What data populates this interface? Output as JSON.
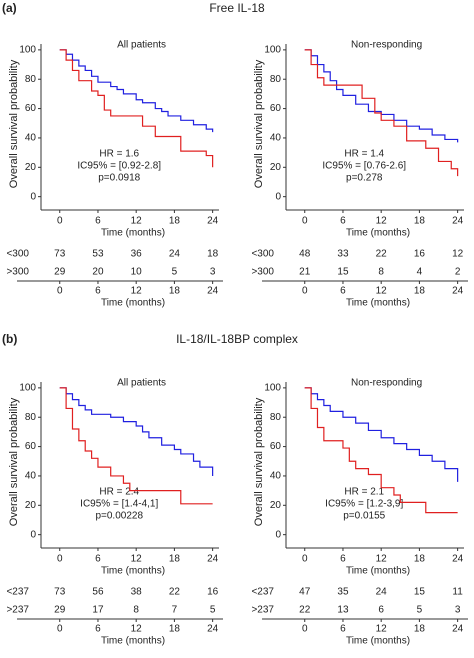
{
  "panels": [
    {
      "label": "(a)",
      "title": "Free IL-18"
    },
    {
      "label": "(b)",
      "title": "IL-18/IL-18BP complex"
    }
  ],
  "chart_data": [
    {
      "type": "line",
      "step": true,
      "subtitle": "All patients",
      "ylabel": "Overall survival probability",
      "xlabel": "Time (months)",
      "xlim": [
        -2,
        25
      ],
      "ylim": [
        -5,
        104
      ],
      "xticks": [
        0,
        6,
        12,
        18,
        24
      ],
      "yticks": [
        0,
        20,
        40,
        60,
        80,
        100
      ],
      "annotations": [
        "HR = 1.6",
        "IC95% = [0.92-2.8]",
        "p=0.0918"
      ],
      "series": [
        {
          "name": "<300",
          "color": "#2020e0",
          "x": [
            0,
            1,
            2,
            3,
            4,
            5,
            6,
            8,
            9,
            10,
            12,
            13,
            15,
            16,
            17,
            19,
            21,
            23,
            24
          ],
          "values": [
            100,
            97,
            93,
            89,
            86,
            82,
            78,
            75,
            73,
            70,
            66,
            64,
            60,
            58,
            55,
            52,
            49,
            46,
            44
          ],
          "at_risk": [
            73,
            53,
            36,
            24,
            18
          ]
        },
        {
          "name": ">300",
          "color": "#e02020",
          "x": [
            0,
            1,
            2,
            3,
            5,
            6,
            7,
            8,
            12,
            13,
            15,
            19,
            23,
            24
          ],
          "values": [
            100,
            93,
            86,
            79,
            72,
            69,
            59,
            55,
            55,
            48,
            41,
            31,
            28,
            20
          ],
          "at_risk": [
            29,
            20,
            10,
            5,
            3
          ]
        }
      ],
      "risk_table": {
        "xticks": [
          0,
          6,
          12,
          18,
          24
        ],
        "xlabel": "Time (months)"
      }
    },
    {
      "type": "line",
      "step": true,
      "subtitle": "Non-responding",
      "ylabel": "Overall survival probability",
      "xlabel": "Time (months)",
      "xlim": [
        -2,
        25
      ],
      "ylim": [
        -5,
        104
      ],
      "xticks": [
        0,
        6,
        12,
        18,
        24
      ],
      "yticks": [
        0,
        20,
        40,
        60,
        80,
        100
      ],
      "annotations": [
        "HR = 1.4",
        "IC95% = [0.76-2.6]",
        "p=0.278"
      ],
      "series": [
        {
          "name": "<300",
          "color": "#2020e0",
          "x": [
            0,
            1,
            2,
            3,
            4,
            5,
            6,
            8,
            10,
            12,
            14,
            16,
            18,
            20,
            22,
            24
          ],
          "values": [
            100,
            96,
            90,
            85,
            79,
            73,
            69,
            63,
            58,
            56,
            52,
            48,
            46,
            42,
            39,
            37
          ],
          "at_risk": [
            48,
            33,
            22,
            16,
            12
          ]
        },
        {
          "name": ">300",
          "color": "#e02020",
          "x": [
            0,
            1,
            2,
            3,
            8,
            9,
            11,
            12,
            14,
            16,
            19,
            21,
            23,
            24
          ],
          "values": [
            100,
            90,
            81,
            76,
            76,
            67,
            57,
            52,
            48,
            38,
            33,
            24,
            19,
            14
          ],
          "at_risk": [
            21,
            15,
            8,
            4,
            2
          ]
        }
      ],
      "risk_table": {
        "xticks": [
          0,
          6,
          12,
          18,
          24
        ],
        "xlabel": "Time (months)"
      }
    },
    {
      "type": "line",
      "step": true,
      "subtitle": "All patients",
      "ylabel": "Overall survival probability",
      "xlabel": "Time (months)",
      "xlim": [
        -2,
        25
      ],
      "ylim": [
        -5,
        104
      ],
      "xticks": [
        0,
        6,
        12,
        18,
        24
      ],
      "yticks": [
        0,
        20,
        40,
        60,
        80,
        100
      ],
      "annotations": [
        "HR = 2.4",
        "IC95% = [1.4-4,1]",
        "p=0.00228"
      ],
      "series": [
        {
          "name": "<237",
          "color": "#2020e0",
          "x": [
            0,
            1,
            2,
            3,
            4,
            5,
            8,
            10,
            12,
            13,
            14,
            16,
            18,
            19,
            21,
            22,
            24
          ],
          "values": [
            100,
            96,
            92,
            88,
            85,
            82,
            80,
            77,
            74,
            70,
            66,
            61,
            58,
            55,
            50,
            46,
            40
          ],
          "at_risk": [
            73,
            56,
            38,
            22,
            16
          ]
        },
        {
          "name": ">237",
          "color": "#e02020",
          "x": [
            0,
            1,
            2,
            3,
            4,
            5,
            6,
            8,
            10,
            11,
            18,
            19,
            24
          ],
          "values": [
            100,
            86,
            72,
            64,
            57,
            52,
            46,
            40,
            35,
            30,
            30,
            21,
            21
          ],
          "at_risk": [
            29,
            17,
            8,
            7,
            5
          ]
        }
      ],
      "risk_table": {
        "xticks": [
          0,
          6,
          12,
          18,
          24
        ],
        "xlabel": "Time (months)"
      }
    },
    {
      "type": "line",
      "step": true,
      "subtitle": "Non-responding",
      "ylabel": "Overall survival probability",
      "xlabel": "Time (months)",
      "xlim": [
        -2,
        25
      ],
      "ylim": [
        -5,
        104
      ],
      "xticks": [
        0,
        6,
        12,
        18,
        24
      ],
      "yticks": [
        0,
        20,
        40,
        60,
        80,
        100
      ],
      "annotations": [
        "HR = 2.1",
        "IC95% = [1.2-3,9]",
        "p=0.0155"
      ],
      "series": [
        {
          "name": "<237",
          "color": "#2020e0",
          "x": [
            0,
            1,
            2,
            3,
            4,
            6,
            8,
            10,
            12,
            14,
            16,
            18,
            20,
            22,
            24
          ],
          "values": [
            100,
            96,
            92,
            88,
            84,
            80,
            76,
            71,
            66,
            62,
            58,
            54,
            50,
            45,
            36
          ],
          "at_risk": [
            47,
            35,
            24,
            15,
            11
          ]
        },
        {
          "name": ">237",
          "color": "#e02020",
          "x": [
            0,
            1,
            2,
            3,
            6,
            7,
            8,
            10,
            12,
            14,
            15,
            18,
            19,
            24
          ],
          "values": [
            100,
            86,
            73,
            64,
            59,
            50,
            45,
            41,
            32,
            27,
            22,
            22,
            15,
            15
          ],
          "at_risk": [
            22,
            13,
            6,
            5,
            3
          ]
        }
      ],
      "risk_table": {
        "xticks": [
          0,
          6,
          12,
          18,
          24
        ],
        "xlabel": "Time (months)"
      }
    }
  ]
}
